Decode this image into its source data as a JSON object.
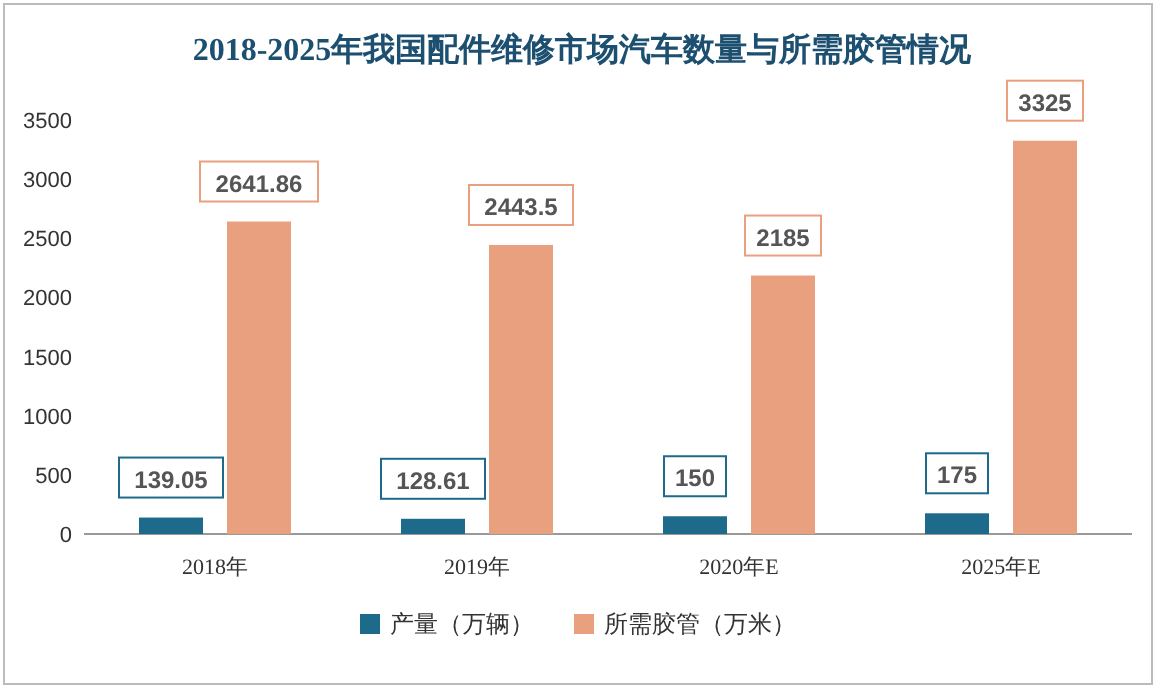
{
  "chart_data": {
    "type": "bar",
    "title": "2018-2025年我国配件维修市场汽车数量与所需胶管情况",
    "categories": [
      "2018年",
      "2019年",
      "2020年E",
      "2025年E"
    ],
    "series": [
      {
        "name": "产量（万辆）",
        "color": "#1d6a8a",
        "values": [
          139.05,
          128.61,
          150,
          175
        ]
      },
      {
        "name": "所需胶管（万米）",
        "color": "#e8a07f",
        "values": [
          2641.86,
          2443.5,
          2185,
          3325
        ]
      }
    ],
    "ylim": [
      0,
      3500
    ],
    "yticks": [
      0,
      500,
      1000,
      1500,
      2000,
      2500,
      3000,
      3500
    ],
    "grid": false,
    "legend": "bottom",
    "data_labels": true
  }
}
